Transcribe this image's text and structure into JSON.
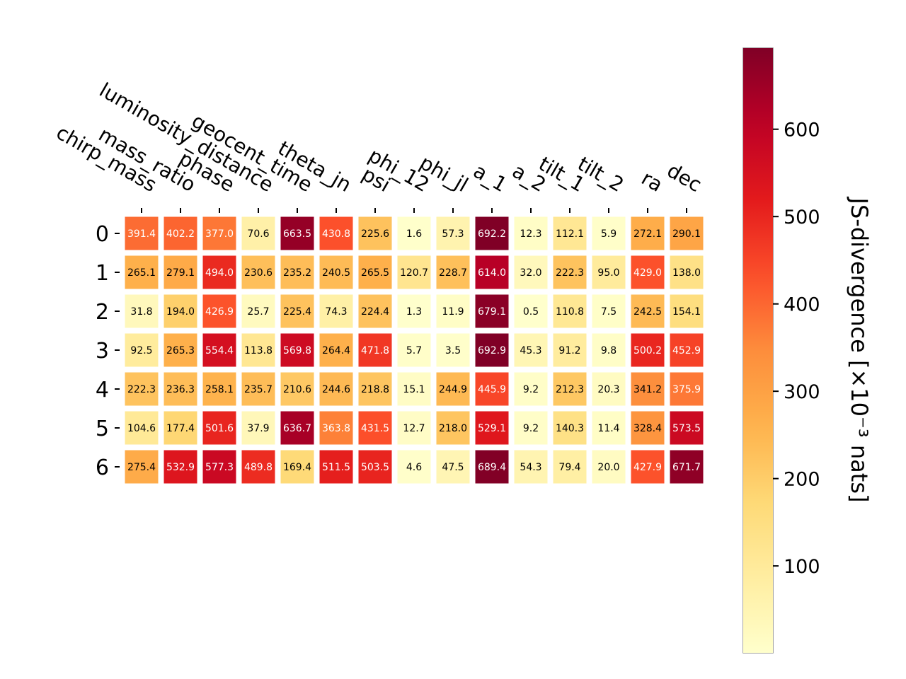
{
  "chart_data": {
    "type": "heatmap",
    "columns": [
      "chirp_mass",
      "mass_ratio",
      "phase",
      "luminosity_distance",
      "geocent_time",
      "theta_jn",
      "psi",
      "phi_12",
      "phi_jl",
      "a_1",
      "a_2",
      "tilt_1",
      "tilt_2",
      "ra",
      "dec"
    ],
    "rows": [
      "0",
      "1",
      "2",
      "3",
      "4",
      "5",
      "6"
    ],
    "values": [
      [
        391.4,
        402.2,
        377.0,
        70.6,
        663.5,
        430.8,
        225.6,
        1.6,
        57.3,
        692.2,
        12.3,
        112.1,
        5.9,
        272.1,
        290.1
      ],
      [
        265.1,
        279.1,
        494.0,
        230.6,
        235.2,
        240.5,
        265.5,
        120.7,
        228.7,
        614.0,
        32.0,
        222.3,
        95.0,
        429.0,
        138.0
      ],
      [
        31.8,
        194.0,
        426.9,
        25.7,
        225.4,
        74.3,
        224.4,
        1.3,
        11.9,
        679.1,
        0.5,
        110.8,
        7.5,
        242.5,
        154.1
      ],
      [
        92.5,
        265.3,
        554.4,
        113.8,
        569.8,
        264.4,
        471.8,
        5.7,
        3.5,
        692.9,
        45.3,
        91.2,
        9.8,
        500.2,
        452.9
      ],
      [
        222.3,
        236.3,
        258.1,
        235.7,
        210.6,
        244.6,
        218.8,
        15.1,
        244.9,
        445.9,
        9.2,
        212.3,
        20.3,
        341.2,
        375.9
      ],
      [
        104.6,
        177.4,
        501.6,
        37.9,
        636.7,
        363.8,
        431.5,
        12.7,
        218.0,
        529.1,
        9.2,
        140.3,
        11.4,
        328.4,
        573.5
      ],
      [
        275.4,
        532.9,
        577.3,
        489.8,
        169.4,
        511.5,
        503.5,
        4.6,
        47.5,
        689.4,
        54.3,
        79.4,
        20.0,
        427.9,
        671.7
      ]
    ],
    "colormap": "YlOrRd",
    "vmin": 0.5,
    "vmax": 692.9,
    "colorbar": {
      "ticks": [
        100,
        200,
        300,
        400,
        500,
        600
      ],
      "tick_labels": [
        "100",
        "200",
        "300",
        "400",
        "500",
        "600"
      ],
      "label": "JS-divergence [×10⁻³ nats]"
    }
  }
}
